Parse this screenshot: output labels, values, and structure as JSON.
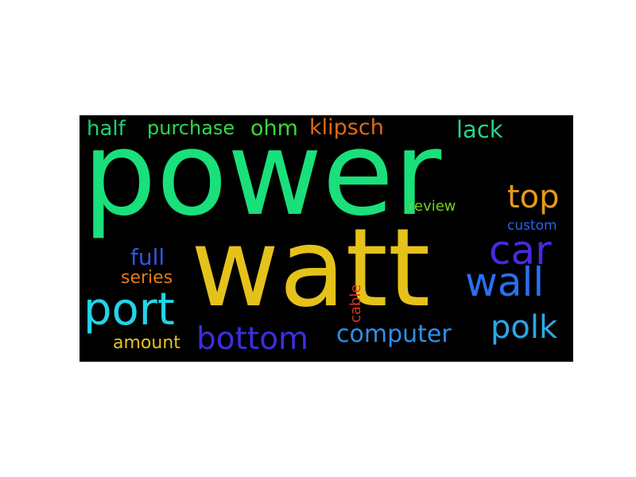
{
  "word_cloud": {
    "background": "#000000",
    "words": [
      {
        "key": "power",
        "text": "power",
        "color": "#19e07a"
      },
      {
        "key": "watt",
        "text": "watt",
        "color": "#e5c21a"
      },
      {
        "key": "port",
        "text": "port",
        "color": "#22d4e8"
      },
      {
        "key": "bottom",
        "text": "bottom",
        "color": "#3b2ee0"
      },
      {
        "key": "wall",
        "text": "wall",
        "color": "#2b6ef0"
      },
      {
        "key": "car",
        "text": "car",
        "color": "#4b28e0"
      },
      {
        "key": "top",
        "text": "top",
        "color": "#e59a18"
      },
      {
        "key": "polk",
        "text": "polk",
        "color": "#2aa7ea"
      },
      {
        "key": "computer",
        "text": "computer",
        "color": "#2e8fe8"
      },
      {
        "key": "klipsch",
        "text": "klipsch",
        "color": "#e06a14"
      },
      {
        "key": "lack",
        "text": "lack",
        "color": "#24d488"
      },
      {
        "key": "ohm",
        "text": "ohm",
        "color": "#3fd634"
      },
      {
        "key": "half",
        "text": "half",
        "color": "#22cf73"
      },
      {
        "key": "purchase",
        "text": "purchase",
        "color": "#2fd94a"
      },
      {
        "key": "full",
        "text": "full",
        "color": "#2e57e6"
      },
      {
        "key": "series",
        "text": "series",
        "color": "#e57a18"
      },
      {
        "key": "amount",
        "text": "amount",
        "color": "#e8c21c"
      },
      {
        "key": "review",
        "text": "review",
        "color": "#7ccf16"
      },
      {
        "key": "custom",
        "text": "custom",
        "color": "#2466e6"
      },
      {
        "key": "cable",
        "text": "cable",
        "color": "#e0341a"
      }
    ]
  }
}
